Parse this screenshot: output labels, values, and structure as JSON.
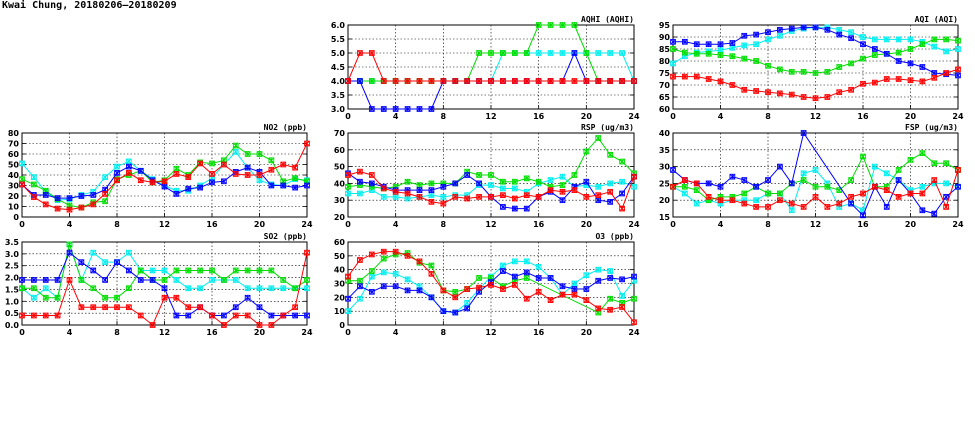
{
  "title": "Kwai Chung, 20180206–20180209",
  "colors": {
    "red": "#ff0000",
    "green": "#00dd00",
    "blue": "#0000ff",
    "cyan": "#00eeee"
  },
  "chart_data": [
    {
      "type": "line",
      "title": "AQHI (AQHI)",
      "ylim": [
        3,
        6
      ],
      "yticks": [
        "3.0",
        "3.5",
        "4.0",
        "4.5",
        "5.0",
        "5.5",
        "6.0"
      ],
      "ytick_values": [
        3,
        3.5,
        4,
        4.5,
        5,
        5.5,
        6
      ],
      "xlim": [
        0,
        24
      ],
      "xticks": [
        "0",
        "4",
        "8",
        "12",
        "16",
        "20",
        "24"
      ],
      "grid": true,
      "series": [
        {
          "name": "cyan",
          "values": [
            4,
            4,
            4,
            4,
            4,
            4,
            4,
            4,
            4,
            4,
            4,
            4,
            4,
            5,
            5,
            5,
            5,
            5,
            5,
            5,
            5,
            5,
            5,
            5,
            4
          ]
        },
        {
          "name": "green",
          "values": [
            4,
            4,
            4,
            4,
            4,
            4,
            4,
            4,
            4,
            4,
            4,
            5,
            5,
            5,
            5,
            5,
            6,
            6,
            6,
            6,
            5,
            4,
            4,
            4,
            4
          ]
        },
        {
          "name": "blue",
          "values": [
            4,
            4,
            3,
            3,
            3,
            3,
            3,
            3,
            4,
            4,
            4,
            4,
            4,
            4,
            4,
            4,
            4,
            4,
            4,
            5,
            4,
            4,
            4,
            4,
            4
          ]
        },
        {
          "name": "red",
          "values": [
            4,
            5,
            5,
            4,
            4,
            4,
            4,
            4,
            4,
            4,
            4,
            4,
            4,
            4,
            4,
            4,
            4,
            4,
            4,
            4,
            4,
            4,
            4,
            4,
            4
          ]
        }
      ]
    },
    {
      "type": "line",
      "title": "AQI (AQI)",
      "ylim": [
        60,
        95
      ],
      "yticks": [
        "60",
        "65",
        "70",
        "75",
        "80",
        "85",
        "90",
        "95"
      ],
      "ytick_values": [
        60,
        65,
        70,
        75,
        80,
        85,
        90,
        95
      ],
      "xlim": [
        0,
        24
      ],
      "xticks": [
        "0",
        "4",
        "8",
        "12",
        "16",
        "20",
        "24"
      ],
      "grid": true,
      "series": [
        {
          "name": "cyan",
          "values": [
            79,
            82,
            83.5,
            84,
            84.5,
            85.5,
            86.5,
            87,
            89,
            90.5,
            92.5,
            93.5,
            94,
            94,
            93,
            92,
            90,
            89,
            89,
            89,
            89,
            88,
            86,
            84,
            85
          ]
        },
        {
          "name": "green",
          "values": [
            85,
            83.5,
            83,
            83,
            82.5,
            82,
            81,
            80,
            78,
            76.5,
            75.5,
            75.5,
            75,
            75.5,
            77.5,
            79,
            81,
            82.5,
            83,
            83.5,
            85,
            87,
            89,
            89,
            88.5
          ]
        },
        {
          "name": "blue",
          "values": [
            88,
            88,
            87,
            87,
            87,
            87.5,
            90.5,
            91,
            92,
            93,
            93.5,
            94,
            94,
            93,
            91,
            89.5,
            87,
            85,
            83,
            80,
            79,
            77.5,
            75,
            74.5,
            74
          ]
        },
        {
          "name": "red",
          "values": [
            73.5,
            73.5,
            73.5,
            72.5,
            71.5,
            70,
            68,
            67.5,
            67,
            66.5,
            66,
            65,
            64.5,
            65,
            67,
            68,
            70.5,
            71,
            72.5,
            72.5,
            72,
            71.5,
            73,
            75,
            76.5
          ]
        }
      ]
    },
    {
      "type": "line",
      "title": "NO2 (ppb)",
      "ylim": [
        0,
        80
      ],
      "yticks": [
        "0",
        "10",
        "20",
        "30",
        "40",
        "50",
        "60",
        "70",
        "80"
      ],
      "ytick_values": [
        0,
        10,
        20,
        30,
        40,
        50,
        60,
        70,
        80
      ],
      "xlim": [
        0,
        24
      ],
      "xticks": [
        "0",
        "4",
        "8",
        "12",
        "16",
        "20",
        "24"
      ],
      "grid": true,
      "series": [
        {
          "name": "cyan",
          "values": [
            51,
            38,
            24,
            16,
            17,
            21,
            24,
            38,
            48,
            53,
            44,
            36,
            30,
            25,
            25,
            30,
            37,
            50,
            62,
            47,
            35,
            31,
            30,
            36,
            35
          ]
        },
        {
          "name": "green",
          "values": [
            36,
            31,
            25,
            17,
            11,
            9,
            14,
            15,
            36,
            40,
            44,
            33,
            35,
            46,
            40,
            52,
            51,
            54,
            68,
            60,
            60,
            54,
            34,
            37,
            34
          ]
        },
        {
          "name": "blue",
          "values": [
            31,
            21,
            21,
            18,
            18,
            20,
            21,
            26,
            42,
            48,
            44,
            35,
            29,
            22,
            27,
            28,
            33,
            34,
            43,
            47,
            43,
            30,
            30,
            28,
            30
          ]
        },
        {
          "name": "red",
          "values": [
            31,
            19,
            12,
            8,
            7,
            9,
            12,
            22,
            35,
            42,
            35,
            33,
            34,
            41,
            38,
            51,
            41,
            50,
            41,
            40,
            40,
            45,
            50,
            47,
            70
          ]
        }
      ]
    },
    {
      "type": "line",
      "title": "RSP (ug/m3)",
      "ylim": [
        20,
        70
      ],
      "yticks": [
        "20",
        "30",
        "40",
        "50",
        "60",
        "70"
      ],
      "ytick_values": [
        20,
        30,
        40,
        50,
        60,
        70
      ],
      "xlim": [
        0,
        24
      ],
      "xticks": [
        "0",
        "4",
        "8",
        "12",
        "16",
        "20",
        "24"
      ],
      "grid": true,
      "series": [
        {
          "name": "cyan",
          "values": [
            34,
            34,
            36,
            32,
            32,
            31,
            32,
            33,
            32,
            33,
            33,
            39,
            39,
            37,
            37,
            35,
            40,
            42,
            44,
            38,
            39,
            38,
            40,
            41,
            38
          ]
        },
        {
          "name": "green",
          "values": [
            38,
            39,
            38,
            37,
            38,
            41,
            39,
            40,
            40,
            40,
            47,
            45,
            45,
            41,
            41,
            43,
            41,
            38,
            39,
            45,
            59,
            67,
            57,
            53,
            46
          ]
        },
        {
          "name": "blue",
          "values": [
            46,
            41,
            40,
            38,
            36,
            36,
            36,
            36,
            38,
            40,
            45,
            40,
            32,
            26,
            25,
            25,
            32,
            35,
            30,
            38,
            41,
            30,
            29,
            34,
            44
          ]
        },
        {
          "name": "red",
          "values": [
            45,
            47,
            45,
            37,
            35,
            34,
            32,
            29,
            28,
            32,
            31,
            32,
            32,
            33,
            31,
            33,
            32,
            36,
            35,
            36,
            32,
            33,
            35,
            25,
            44
          ]
        }
      ]
    },
    {
      "type": "line",
      "title": "FSP (ug/m3)",
      "ylim": [
        15,
        40
      ],
      "yticks": [
        "15",
        "20",
        "25",
        "30",
        "35",
        "40"
      ],
      "ytick_values": [
        15,
        20,
        25,
        30,
        35,
        40
      ],
      "xlim": [
        0,
        24
      ],
      "xticks": [
        "0",
        "4",
        "8",
        "12",
        "16",
        "20",
        "24"
      ],
      "grid": true,
      "series": [
        {
          "name": "cyan",
          "values": [
            24,
            22,
            19,
            20,
            19,
            20,
            20,
            20,
            22,
            22,
            17,
            28,
            29,
            25,
            18,
            19,
            17,
            30,
            28,
            26,
            23,
            24,
            25,
            25,
            24
          ]
        },
        {
          "name": "green",
          "values": [
            24,
            24,
            23,
            20,
            21,
            21,
            22,
            24,
            22,
            22,
            25,
            26,
            24,
            24,
            23,
            26,
            33,
            24,
            24,
            29,
            32,
            34,
            31,
            31,
            29
          ]
        },
        {
          "name": "blue",
          "values": [
            29,
            26,
            25,
            25,
            24,
            27,
            26,
            24,
            26,
            30,
            25,
            40,
            null,
            null,
            null,
            19,
            15.5,
            24,
            18,
            26,
            22,
            17,
            16,
            21,
            24
          ]
        },
        {
          "name": "red",
          "values": [
            24,
            26,
            25,
            21,
            20,
            20,
            19,
            18,
            18,
            20,
            19,
            18,
            21,
            18,
            19,
            21,
            22,
            24,
            23,
            21,
            22,
            22,
            26,
            18,
            29
          ]
        }
      ]
    },
    {
      "type": "line",
      "title": "SO2 (ppb)",
      "ylim": [
        0,
        3.5
      ],
      "yticks": [
        "0.0",
        "0.5",
        "1.0",
        "1.5",
        "2.0",
        "2.5",
        "3.0",
        "3.5"
      ],
      "ytick_values": [
        0,
        0.5,
        1,
        1.5,
        2,
        2.5,
        3,
        3.5
      ],
      "xlim": [
        0,
        24
      ],
      "xticks": [
        "0",
        "4",
        "8",
        "12",
        "16",
        "20",
        "24"
      ],
      "grid": true,
      "series": [
        {
          "name": "cyan",
          "values": [
            1.55,
            1.15,
            1.55,
            1.15,
            3.4,
            1.9,
            3.05,
            2.65,
            2.65,
            3.05,
            2.3,
            2.3,
            2.3,
            1.9,
            1.55,
            1.55,
            1.9,
            1.9,
            1.9,
            1.55,
            1.55,
            1.55,
            1.55,
            1.55,
            1.55
          ]
        },
        {
          "name": "green",
          "values": [
            1.55,
            1.55,
            1.15,
            1.15,
            3.4,
            1.9,
            1.55,
            1.15,
            1.15,
            1.55,
            2.3,
            1.9,
            1.9,
            2.3,
            2.3,
            2.3,
            2.3,
            1.9,
            2.3,
            2.3,
            2.3,
            2.3,
            1.9,
            1.55,
            1.9
          ]
        },
        {
          "name": "blue",
          "values": [
            1.9,
            1.9,
            1.9,
            1.9,
            3.05,
            2.65,
            2.3,
            1.9,
            2.65,
            2.3,
            1.9,
            1.9,
            1.55,
            0.4,
            0.4,
            0.75,
            0.4,
            0.4,
            0.75,
            1.15,
            0.75,
            0.4,
            0.4,
            0.4,
            0.4
          ]
        },
        {
          "name": "red",
          "values": [
            0.4,
            0.4,
            0.4,
            0.4,
            1.9,
            0.75,
            0.75,
            0.75,
            0.75,
            0.75,
            0.4,
            0,
            1.15,
            1.15,
            0.75,
            0.75,
            0.4,
            0,
            0.4,
            0.4,
            0,
            0,
            0.4,
            0.75,
            3.05
          ]
        }
      ]
    },
    {
      "type": "line",
      "title": "O3 (ppb)",
      "ylim": [
        0,
        60
      ],
      "yticks": [
        "0",
        "10",
        "20",
        "30",
        "40",
        "50",
        "60"
      ],
      "ytick_values": [
        0,
        10,
        20,
        30,
        40,
        50,
        60
      ],
      "xlim": [
        0,
        24
      ],
      "xticks": [
        "0",
        "4",
        "8",
        "12",
        "16",
        "20",
        "24"
      ],
      "grid": true,
      "series": [
        {
          "name": "cyan",
          "values": [
            10,
            19,
            35,
            38,
            37,
            33,
            28,
            20,
            10,
            9,
            16,
            26,
            35,
            43,
            46,
            46,
            42,
            34,
            22,
            30,
            36,
            40,
            39,
            21,
            32
          ]
        },
        {
          "name": "green",
          "values": [
            32,
            32,
            39,
            48,
            51,
            52,
            45,
            43,
            25,
            24,
            26,
            34,
            34,
            28,
            32,
            34,
            null,
            null,
            null,
            null,
            null,
            9,
            19,
            16,
            19
          ]
        },
        {
          "name": "blue",
          "values": [
            19,
            28,
            24,
            28,
            28,
            25,
            25,
            20,
            10,
            9,
            12,
            24,
            31,
            39,
            35,
            38,
            34,
            34,
            28,
            26,
            26,
            32,
            34,
            33,
            35
          ]
        },
        {
          "name": "red",
          "values": [
            35,
            47,
            51,
            53,
            53,
            50,
            46,
            37,
            25,
            20,
            26,
            27,
            29,
            26,
            29,
            19,
            24,
            18,
            22,
            22,
            18,
            12,
            11,
            13,
            2
          ]
        }
      ]
    }
  ]
}
